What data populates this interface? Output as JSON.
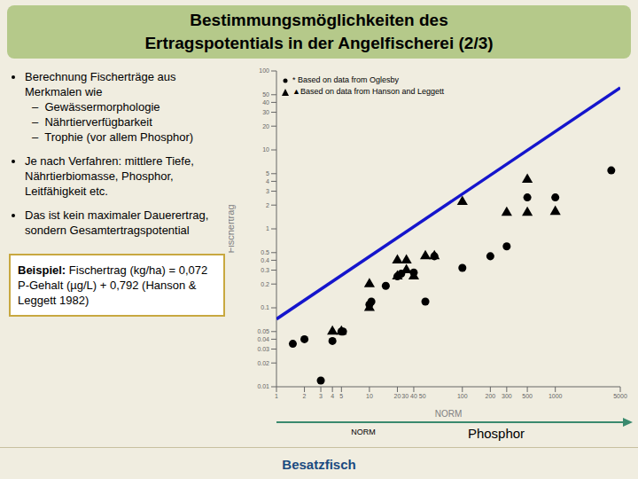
{
  "chart_data": {
    "type": "scatter",
    "title": "Bestimmungsmöglichkeiten des",
    "subtitle": "Ertragspotentials in der Angelfischerei (2/3)",
    "x_label": "NORM",
    "y_label": "Fischertrag",
    "log": true,
    "grid": false,
    "legend": "upper left",
    "xlim": [
      1,
      5000
    ],
    "ylim": [
      0.01,
      100
    ],
    "xticks": [
      1,
      2,
      3,
      4,
      5,
      10,
      20,
      {
        "value": 30,
        "label": "30 40 50"
      },
      100,
      200,
      300,
      500,
      1000,
      5000
    ],
    "yticks": [
      0.01,
      0.02,
      0.03,
      0.04,
      0.05,
      0.1,
      0.2,
      0.3,
      0.4,
      0.5,
      1,
      2,
      3,
      4,
      5,
      10,
      20,
      30,
      40,
      50,
      100
    ],
    "series": [
      {
        "name": "* Based on data from Oglesby",
        "color": "#000000",
        "marker": "circle",
        "x": [
          1.5,
          2.0,
          3.0,
          4.0,
          5.0,
          5.2,
          10.0,
          10.5,
          15.0,
          20.0,
          22.0,
          30.0,
          40.0,
          50.0,
          100.0,
          200.0,
          300.0,
          500.0,
          1000.0,
          4000.0
        ],
        "values": [
          0.035,
          0.04,
          0.012,
          0.038,
          0.05,
          0.05,
          0.11,
          0.12,
          0.19,
          0.25,
          0.27,
          0.28,
          0.12,
          0.45,
          0.32,
          0.45,
          0.6,
          2.5,
          2.5,
          5.5
        ]
      },
      {
        "name": "▲Based on data from Hanson and Leggett",
        "color": "#000000",
        "marker": "triangle",
        "x": [
          4.0,
          5.0,
          10.0,
          10.0,
          20.0,
          20.0,
          25.0,
          25.0,
          30.0,
          40.0,
          50.0,
          100.0,
          300.0,
          500.0,
          500.0,
          1000.0
        ],
        "values": [
          0.05,
          0.05,
          0.1,
          0.2,
          0.25,
          0.4,
          0.3,
          0.4,
          0.25,
          0.45,
          0.45,
          2.2,
          1.6,
          1.6,
          4.2,
          1.65
        ]
      },
      {
        "type": "line",
        "color": "#1515cc",
        "x": [
          1,
          5000
        ],
        "values": [
          0.072,
          61.22
        ]
      }
    ],
    "annotations": [
      "Berechnung Fischerträge aus Merkmalen wie",
      "–  Gewässermorphologie",
      "–  Nährtierverfügbarkeit",
      "–  Trophie (vor allem Phosphor)",
      "Je nach Verfahren: mittlere Tiefe, Nährtierbiomasse, Phosphor, Leitfähigkeit etc.",
      "Das ist kein maximaler Dauerertrag, sondern Gesamtertragspotential",
      "Beispiel:",
      "Fischertrag (kg/ha) = 0,072 P-Gehalt (µg/L) + 0,792 (Hanson & Leggett 1982)",
      "NORM",
      "Phosphor",
      "Besatzfisch"
    ]
  }
}
